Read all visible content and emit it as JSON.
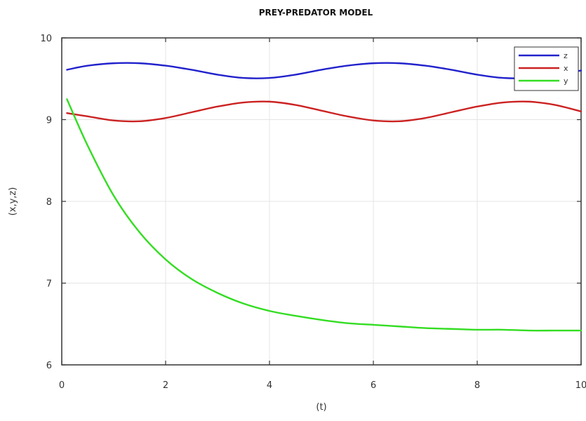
{
  "chart_data": {
    "type": "line",
    "title": "PREY-PREDATOR MODEL",
    "xlabel": "(t)",
    "ylabel": "(x,y,z)",
    "xlim": [
      0,
      10
    ],
    "ylim": [
      6,
      10
    ],
    "xticks": [
      0,
      2,
      4,
      6,
      8,
      10
    ],
    "yticks": [
      6,
      7,
      8,
      9,
      10
    ],
    "xtick_labels": [
      "0",
      "2",
      "4",
      "6",
      "8",
      "10"
    ],
    "ytick_labels": [
      "6",
      "7",
      "8",
      "9",
      "10"
    ],
    "grid": true,
    "legend_position": "top-right",
    "x": [
      0.1,
      0.5,
      1.0,
      1.5,
      2.0,
      2.5,
      3.0,
      3.5,
      4.0,
      4.5,
      5.0,
      5.5,
      6.0,
      6.5,
      7.0,
      7.5,
      8.0,
      8.5,
      9.0,
      9.5,
      10.0
    ],
    "series": [
      {
        "name": "z",
        "color": "#2222cc",
        "values": [
          9.61,
          9.66,
          9.69,
          9.69,
          9.66,
          9.61,
          9.55,
          9.51,
          9.51,
          9.55,
          9.61,
          9.66,
          9.69,
          9.69,
          9.66,
          9.61,
          9.55,
          9.51,
          9.51,
          9.55,
          9.6
        ]
      },
      {
        "name": "x",
        "color": "#cc2222",
        "values": [
          9.08,
          9.04,
          8.99,
          8.98,
          9.02,
          9.09,
          9.16,
          9.21,
          9.22,
          9.18,
          9.11,
          9.04,
          8.99,
          8.98,
          9.02,
          9.09,
          9.16,
          9.21,
          9.22,
          9.18,
          9.1
        ]
      },
      {
        "name": "y",
        "color": "#33dd22",
        "values": [
          9.25,
          8.68,
          8.07,
          7.62,
          7.29,
          7.05,
          6.88,
          6.75,
          6.66,
          6.6,
          6.55,
          6.51,
          6.49,
          6.47,
          6.45,
          6.44,
          6.43,
          6.43,
          6.42,
          6.42,
          6.42
        ]
      }
    ]
  }
}
